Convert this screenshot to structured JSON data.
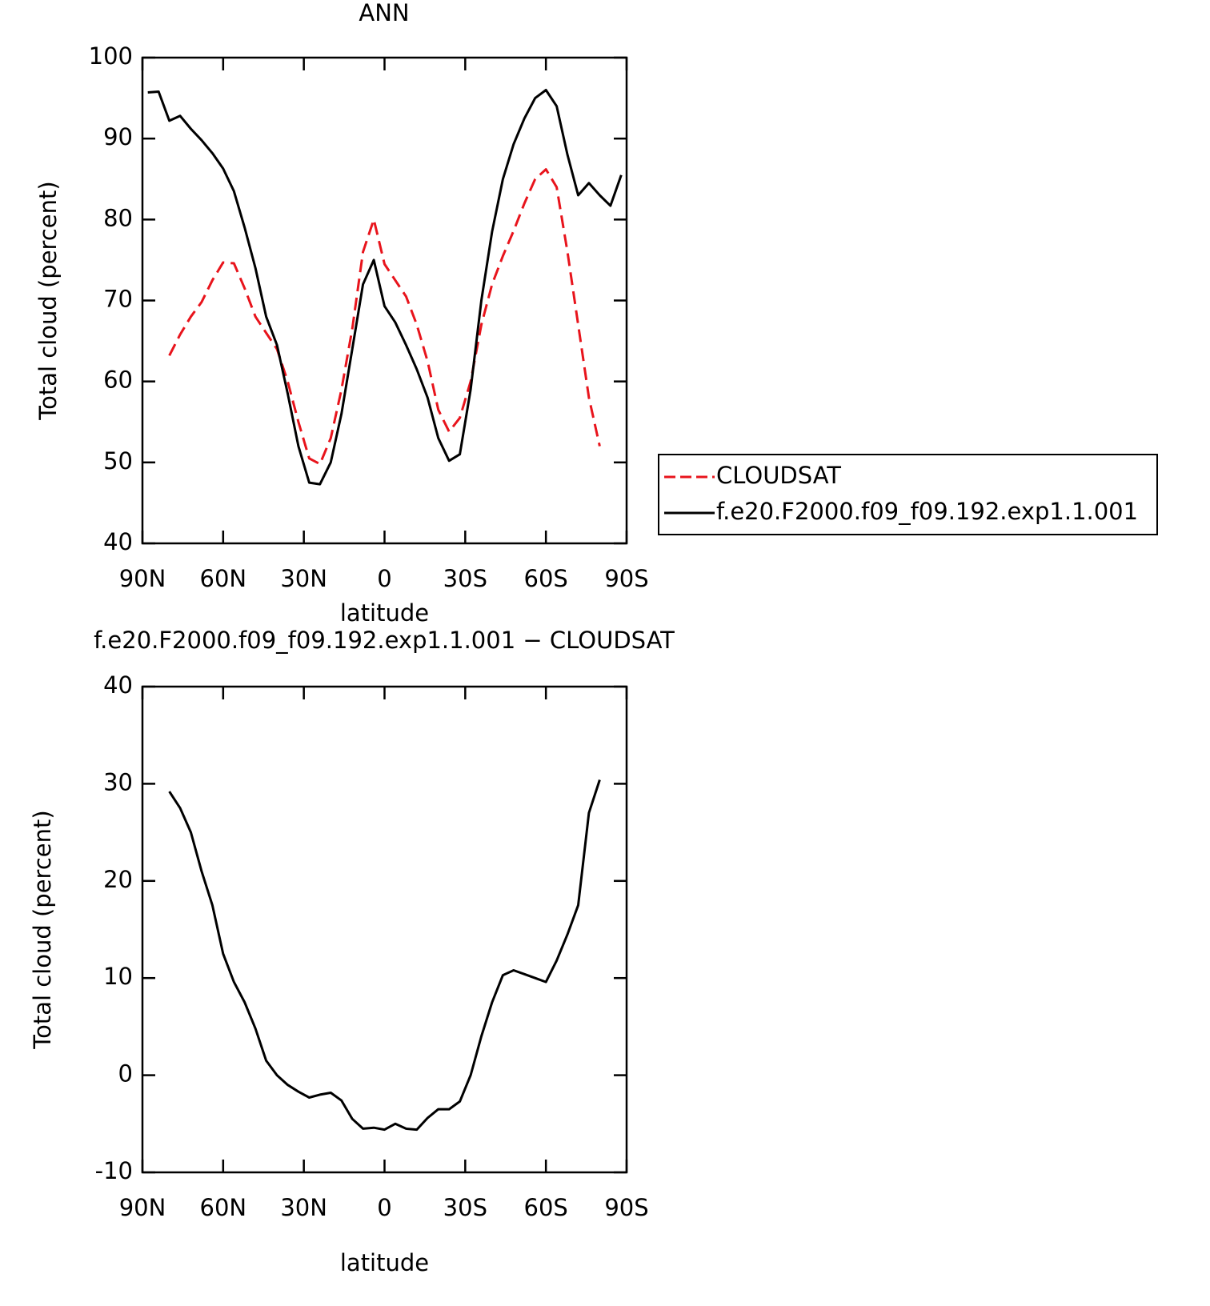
{
  "chart_data": [
    {
      "type": "line",
      "title": "ANN",
      "xlabel": "latitude",
      "ylabel": "Total cloud (percent)",
      "x": [
        88,
        84,
        80,
        76,
        72,
        68,
        64,
        60,
        56,
        52,
        48,
        44,
        40,
        36,
        32,
        28,
        24,
        20,
        16,
        12,
        8,
        4,
        0,
        -4,
        -8,
        -12,
        -16,
        -20,
        -24,
        -28,
        -32,
        -36,
        -40,
        -44,
        -48,
        -52,
        -56,
        -60,
        -64,
        -68,
        -72,
        -76,
        -80,
        -84,
        -88
      ],
      "series": [
        {
          "name": "CLOUDSAT",
          "color": "#e8141c",
          "dashed": true,
          "values": [
            null,
            null,
            63.2,
            65.8,
            68,
            69.8,
            72.5,
            74.7,
            74.6,
            71.5,
            68,
            66,
            64,
            60,
            55,
            50.5,
            49.8,
            53,
            59,
            66.5,
            76,
            80,
            74.5,
            72.5,
            70.5,
            67,
            62.5,
            56.5,
            53.8,
            55.5,
            60,
            67,
            72,
            75.5,
            78.6,
            82,
            85,
            86.2,
            84,
            76,
            67,
            58,
            52,
            null,
            null
          ]
        },
        {
          "name": "f.e20.F2000.f09_f09.192.exp1.1.001",
          "color": "#000000",
          "dashed": false,
          "values": [
            95.7,
            95.8,
            92.2,
            92.8,
            91.2,
            89.8,
            88.2,
            86.3,
            83.5,
            79,
            74,
            68,
            64.5,
            58.5,
            52,
            47.5,
            47.3,
            50,
            56,
            64,
            72,
            75,
            69.3,
            67.3,
            64.5,
            61.5,
            58,
            53,
            50.2,
            51,
            59,
            70,
            78.5,
            85,
            89.3,
            92.5,
            95,
            96,
            94,
            88,
            83,
            84.5,
            83,
            81.7,
            85.5
          ]
        }
      ],
      "xlim": [
        90,
        -90
      ],
      "xticks": [
        {
          "value": 90,
          "label": "90N"
        },
        {
          "value": 60,
          "label": "60N"
        },
        {
          "value": 30,
          "label": "30N"
        },
        0,
        {
          "value": -30,
          "label": "30S"
        },
        {
          "value": -60,
          "label": "60S"
        },
        {
          "value": -90,
          "label": "90S"
        }
      ],
      "ylim": [
        40,
        100
      ],
      "yticks": [
        40,
        50,
        60,
        70,
        80,
        90,
        100
      ],
      "legend": "right"
    },
    {
      "type": "line",
      "title": "f.e20.F2000.f09_f09.192.exp1.1.001 − CLOUDSAT",
      "xlabel": "latitude",
      "ylabel": "Total cloud (percent)",
      "x": [
        88,
        84,
        80,
        76,
        72,
        68,
        64,
        60,
        56,
        52,
        48,
        44,
        40,
        36,
        32,
        28,
        24,
        20,
        16,
        12,
        8,
        4,
        0,
        -4,
        -8,
        -12,
        -16,
        -20,
        -24,
        -28,
        -32,
        -36,
        -40,
        -44,
        -48,
        -52,
        -56,
        -60,
        -64,
        -68,
        -72,
        -76,
        -80,
        -84,
        -88
      ],
      "color": "#000000",
      "values": [
        null,
        null,
        29.2,
        27.5,
        25,
        21,
        17.5,
        12.5,
        9.6,
        7.5,
        4.8,
        1.5,
        0,
        -1,
        -1.7,
        -2.3,
        -2,
        -1.8,
        -2.6,
        -4.5,
        -5.5,
        -5.4,
        -5.6,
        -5,
        -5.5,
        -5.6,
        -4.4,
        -3.5,
        -3.5,
        -2.7,
        0,
        4,
        7.5,
        10.3,
        10.8,
        10.4,
        10,
        9.6,
        11.8,
        14.5,
        17.5,
        27,
        30.4,
        null,
        null
      ],
      "xlim": [
        90,
        -90
      ],
      "xticks": [
        {
          "value": 90,
          "label": "90N"
        },
        {
          "value": 60,
          "label": "60N"
        },
        {
          "value": 30,
          "label": "30N"
        },
        0,
        {
          "value": -30,
          "label": "30S"
        },
        {
          "value": -60,
          "label": "60S"
        },
        {
          "value": -90,
          "label": "90S"
        }
      ],
      "ylim": [
        -10,
        40
      ],
      "yticks": [
        -10,
        0,
        10,
        20,
        30,
        40
      ]
    }
  ]
}
